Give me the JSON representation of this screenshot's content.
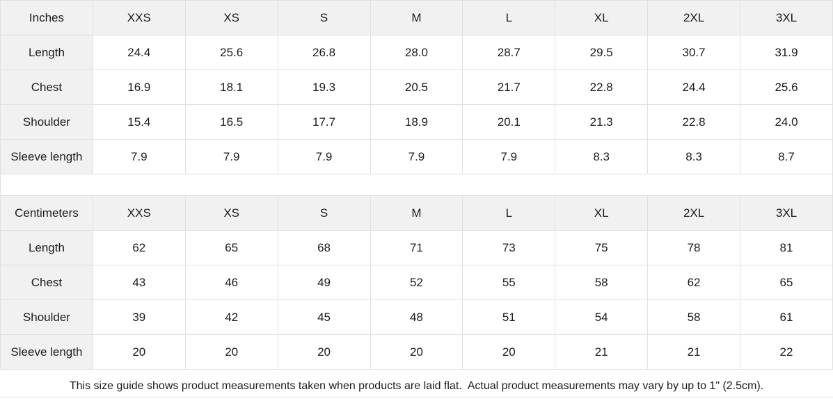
{
  "tables": [
    {
      "unit_label": "Inches",
      "sizes": [
        "XXS",
        "XS",
        "S",
        "M",
        "L",
        "XL",
        "2XL",
        "3XL"
      ],
      "rows": [
        {
          "label": "Length",
          "values": [
            "24.4",
            "25.6",
            "26.8",
            "28.0",
            "28.7",
            "29.5",
            "30.7",
            "31.9"
          ]
        },
        {
          "label": "Chest",
          "values": [
            "16.9",
            "18.1",
            "19.3",
            "20.5",
            "21.7",
            "22.8",
            "24.4",
            "25.6"
          ]
        },
        {
          "label": "Shoulder",
          "values": [
            "15.4",
            "16.5",
            "17.7",
            "18.9",
            "20.1",
            "21.3",
            "22.8",
            "24.0"
          ]
        },
        {
          "label": "Sleeve length",
          "values": [
            "7.9",
            "7.9",
            "7.9",
            "7.9",
            "7.9",
            "8.3",
            "8.3",
            "8.7"
          ]
        }
      ]
    },
    {
      "unit_label": "Centimeters",
      "sizes": [
        "XXS",
        "XS",
        "S",
        "M",
        "L",
        "XL",
        "2XL",
        "3XL"
      ],
      "rows": [
        {
          "label": "Length",
          "values": [
            "62",
            "65",
            "68",
            "71",
            "73",
            "75",
            "78",
            "81"
          ]
        },
        {
          "label": "Chest",
          "values": [
            "43",
            "46",
            "49",
            "52",
            "55",
            "58",
            "62",
            "65"
          ]
        },
        {
          "label": "Shoulder",
          "values": [
            "39",
            "42",
            "45",
            "48",
            "51",
            "54",
            "58",
            "61"
          ]
        },
        {
          "label": "Sleeve length",
          "values": [
            "20",
            "20",
            "20",
            "20",
            "20",
            "21",
            "21",
            "22"
          ]
        }
      ]
    }
  ],
  "footer": {
    "note": "This size guide shows product measurements taken when products are laid flat.  Actual product measurements may vary by up to 1\" (2.5cm)."
  },
  "colors": {
    "header_bg": "#f1f1f1",
    "border": "#e0e0e0",
    "text": "#1c1c1c"
  }
}
